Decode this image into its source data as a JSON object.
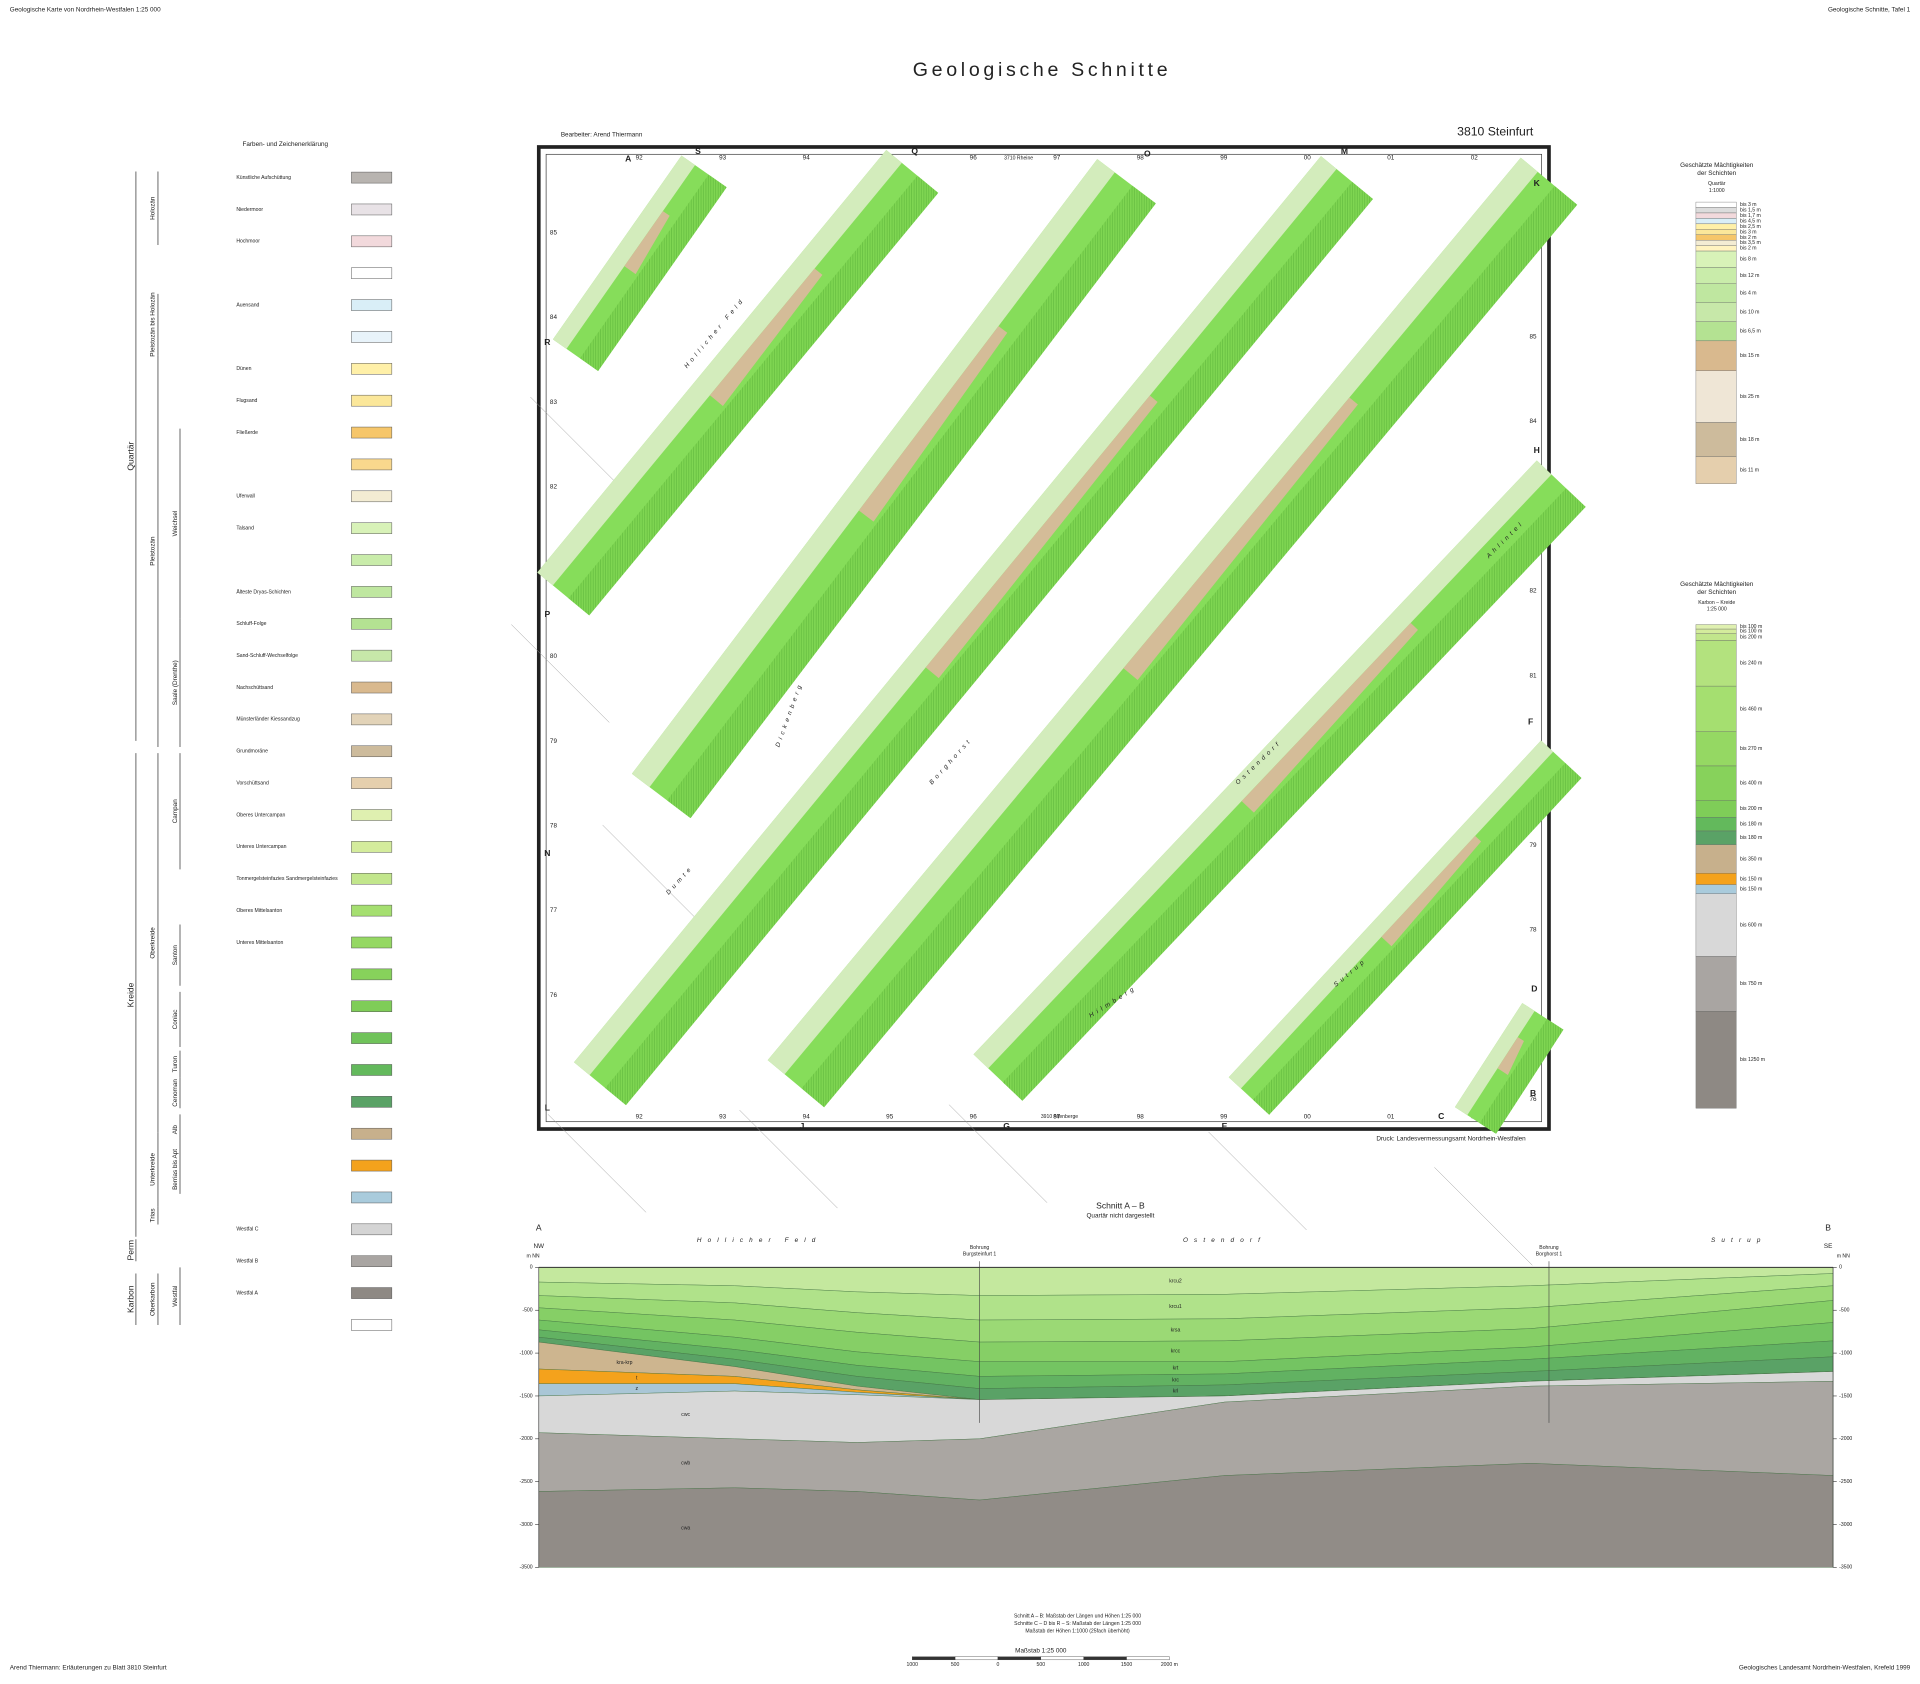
{
  "header": {
    "left": "Geologische Karte von Nordrhein-Westfalen 1:25 000",
    "right": "Geologische Schnitte, Tafel 1",
    "title": "Geologische Schnitte"
  },
  "map": {
    "author": "Bearbeiter: Arend Thiermann",
    "sheet": "3810 Steinfurt",
    "print": "Druck: Landesvermessungsamt Nordrhein-Westfalen",
    "neighbours": [
      "3710 Rheine",
      "3910 Altenberge"
    ],
    "top_grid": [
      "92",
      "93",
      "94",
      "95",
      "96",
      "97",
      "98",
      "99",
      "00",
      "01",
      "02"
    ],
    "side_grid": [
      "85",
      "84",
      "83",
      "82",
      "81",
      "80",
      "79",
      "78",
      "77",
      "76"
    ],
    "section_ends": [
      "A",
      "S",
      "Q",
      "O",
      "M",
      "K",
      "R",
      "P",
      "N",
      "L",
      "J",
      "G",
      "E",
      "C",
      "B",
      "D",
      "F",
      "H"
    ],
    "place_names": [
      "Hollicher Feld",
      "Ostendorf",
      "Borghorst",
      "Dumte",
      "Sutrup",
      "Ahlintel",
      "Hilmberg",
      "Dickenberg"
    ]
  },
  "legend": {
    "title": "Farben- und Zeichenerklärung",
    "strat": [
      {
        "label": "Quartär"
      },
      {
        "label": "Kreide"
      },
      {
        "label": "Perm"
      },
      {
        "label": "Karbon"
      },
      {
        "label": "Holozän"
      },
      {
        "label": "Pleistozän bis Holozän"
      },
      {
        "label": "Pleistozän"
      },
      {
        "label": "Oberkreide"
      },
      {
        "label": "Unterkreide"
      },
      {
        "label": "Trias"
      },
      {
        "label": "Oberkarbon"
      },
      {
        "label": "Weichsel"
      },
      {
        "label": "Saale (Drenthe)"
      },
      {
        "label": "Campan"
      },
      {
        "label": "Santon"
      },
      {
        "label": "Coniac"
      },
      {
        "label": "Turon"
      },
      {
        "label": "Cenoman"
      },
      {
        "label": "Alb"
      },
      {
        "label": "Berrias bis Apt"
      },
      {
        "label": "Westfal"
      }
    ],
    "units": [
      {
        "label": "Künstliche Aufschüttung",
        "color": "#b8b4b0"
      },
      {
        "label": "Niedermoor",
        "color": "#e8e2e6"
      },
      {
        "label": "Hochmoor",
        "color": "#f2d9dc"
      },
      {
        "color": "#ffffff"
      },
      {
        "label": "Auensand",
        "color": "#d9eef7"
      },
      {
        "color": "#e8f3fa"
      },
      {
        "label": "Dünen",
        "color": "#fff0a8"
      },
      {
        "label": "Flugsand",
        "color": "#fbe79a"
      },
      {
        "label": "Fließerde",
        "color": "#f6c66a"
      },
      {
        "color": "#f9d88d"
      },
      {
        "label": "Uferwall",
        "color": "#f3ecd3"
      },
      {
        "label": "Talsand",
        "color": "#d8f2b8"
      },
      {
        "color": "#c9ecaa"
      },
      {
        "label": "Älteste Dryas-Schichten",
        "color": "#bfe7a0"
      },
      {
        "label": "Schluff-Folge",
        "color": "#b4e292"
      },
      {
        "label": "Sand-Schluff-Wechselfolge",
        "color": "#c7e8a9"
      },
      {
        "label": "Nachschüttsand",
        "color": "#d9b98e"
      },
      {
        "label": "Münsterländer Kiessandzug",
        "color": "#e2d3b8"
      },
      {
        "label": "Grundmoräne",
        "color": "#cdbb9c"
      },
      {
        "label": "Vorschüttsand",
        "color": "#e5cfad"
      },
      {
        "label": "Oberes Untercampan",
        "color": "#dff0b0"
      },
      {
        "label": "Unteres Untercampan",
        "color": "#d4ec9c"
      },
      {
        "label": "Tonmergelsteinfazies Sandmergelsteinfazies",
        "color": "#c2e68c"
      },
      {
        "label": "Oberes Mittelsanton",
        "color": "#a5df70"
      },
      {
        "label": "Unteres Mittelsanton",
        "color": "#95d863"
      },
      {
        "color": "#87d25b"
      },
      {
        "color": "#7fcd58"
      },
      {
        "color": "#70c35a"
      },
      {
        "color": "#63b95c"
      },
      {
        "color": "#5aa266"
      },
      {
        "color": "#c7b08c"
      },
      {
        "color": "#f4a21c"
      },
      {
        "color": "#a9cbdc"
      },
      {
        "label": "Westfal C",
        "color": "#d4d4d4"
      },
      {
        "label": "Westfal B",
        "color": "#a9a5a2"
      },
      {
        "label": "Westfal A",
        "color": "#8e8984"
      },
      {
        "color": "#ffffff"
      }
    ]
  },
  "thickness": [
    {
      "title_lines": [
        "Geschätzte Mächtigkeiten",
        "der Schichten"
      ],
      "scale_lines": [
        "Quartär",
        "1:1000"
      ],
      "rows": [
        {
          "label": "bis 3 m",
          "color": "#ffffff"
        },
        {
          "label": "bis 1,5 m",
          "color": "#dcdcdc"
        },
        {
          "label": "bis 1,7 m",
          "color": "#f2d9dc"
        },
        {
          "label": "bis 4,5 m",
          "color": "#d9eef7"
        },
        {
          "label": "bis 2,5 m",
          "color": "#fff0a8"
        },
        {
          "label": "bis 3 m",
          "color": "#fbe79a"
        },
        {
          "label": "bis 2 m",
          "color": "#f6c66a"
        },
        {
          "label": "bis 3,5 m",
          "color": "#f3ecd3"
        },
        {
          "label": "bis 2 m",
          "color": "#fff3c0"
        },
        {
          "label": "bis 8 m",
          "color": "#d8f2b8"
        },
        {
          "label": "bis 12 m",
          "color": "#c9ecaa"
        },
        {
          "label": "bis 4 m",
          "color": "#bfe7a0"
        },
        {
          "label": "bis 10 m",
          "color": "#c7e8a9"
        },
        {
          "label": "bis 6,5 m",
          "color": "#b4e292"
        },
        {
          "label": "bis 15 m",
          "color": "#d9b98e"
        },
        {
          "label": "bis 25 m",
          "color": "#efe6d6"
        },
        {
          "label": "bis 18 m",
          "color": "#cdbb9c"
        },
        {
          "label": "bis 11 m",
          "color": "#e5cfad"
        }
      ]
    },
    {
      "title_lines": [
        "Geschätzte Mächtigkeiten",
        "der Schichten"
      ],
      "scale_lines": [
        "Karbon – Kreide",
        "1:25 000"
      ],
      "rows": [
        {
          "label": "bis 100 m",
          "color": "#dff0b0"
        },
        {
          "label": "bis 100 m",
          "color": "#d4ec9c"
        },
        {
          "label": "bis 200 m",
          "color": "#c2e68c"
        },
        {
          "label": "bis 240 m",
          "color": "#b3e27e"
        },
        {
          "label": "bis 460 m",
          "color": "#a5df70"
        },
        {
          "label": "bis 270 m",
          "color": "#95d863"
        },
        {
          "label": "bis 400 m",
          "color": "#87d25b"
        },
        {
          "label": "bis 200 m",
          "color": "#7fcd58"
        },
        {
          "label": "bis 180 m",
          "color": "#63b95c"
        },
        {
          "label": "bis 180 m",
          "color": "#5aa266"
        },
        {
          "label": "bis 350 m",
          "color": "#c7b08c"
        },
        {
          "label": "bis 150 m",
          "color": "#f4a21c"
        },
        {
          "label": "bis 150 m",
          "color": "#a9cbdc"
        },
        {
          "label": "bis 600 m",
          "color": "#d8d8d8"
        },
        {
          "label": "bis 750 m",
          "color": "#a9a5a2"
        },
        {
          "label": "bis 1250 m",
          "color": "#8e8984"
        }
      ]
    }
  ],
  "section": {
    "title": "Schnitt A – B",
    "subtitle": "Quartär nicht dargestellt",
    "ends": [
      "A",
      "B"
    ],
    "directions": [
      "NW",
      "SE"
    ],
    "axis_label": "m NN",
    "places": [
      "Hollicher Feld",
      "Ostendorf",
      "Sutrup"
    ],
    "boreholes": [
      [
        "Bohrung",
        "Burgsteinfurt 1"
      ],
      [
        "Bohrung",
        "Borghorst 1"
      ]
    ],
    "ylim": [
      -3500,
      0
    ],
    "yticks": [
      0,
      -500,
      -1000,
      -1500,
      -2000,
      -2500,
      -3000,
      -3500
    ],
    "layers": [
      {
        "label": "krcu2",
        "color": "#c4e89e"
      },
      {
        "label": "krcu1",
        "color": "#b0e28a"
      },
      {
        "label": "krsa",
        "color": "#9bd975"
      },
      {
        "label": "krcc",
        "color": "#86cf66"
      },
      {
        "label": "krt",
        "color": "#74c462"
      },
      {
        "label": "krc",
        "color": "#62b262"
      },
      {
        "label": "krl",
        "color": "#5aa266"
      },
      {
        "label": "kra-krp",
        "color": "#cdb58f"
      },
      {
        "label": "t",
        "color": "#f4a21c"
      },
      {
        "label": "z",
        "color": "#a9c6d6"
      },
      {
        "label": "cwc",
        "color": "#d8d8d8"
      },
      {
        "label": "cwb",
        "color": "#aaa6a2"
      },
      {
        "label": "cwa",
        "color": "#918c87"
      }
    ]
  },
  "footer": {
    "scale_notes": [
      "Schnitt A – B:  Maßstab der Längen und Höhen 1:25 000",
      "Schnitte C – D bis R – S:  Maßstab der Längen 1:25 000",
      "Maßstab der Höhen  1:1000 (25fach überhöht)"
    ],
    "scale_title": "Maßstab 1:25 000",
    "scale_ticks": [
      "1000",
      "500",
      "0",
      "500",
      "1000",
      "1500",
      "2000 m"
    ],
    "left": "Arend Thiermann: Erläuterungen zu Blatt 3810 Steinfurt",
    "right": "Geologisches Landesamt Nordrhein-Westfalen, Krefeld 1999"
  }
}
